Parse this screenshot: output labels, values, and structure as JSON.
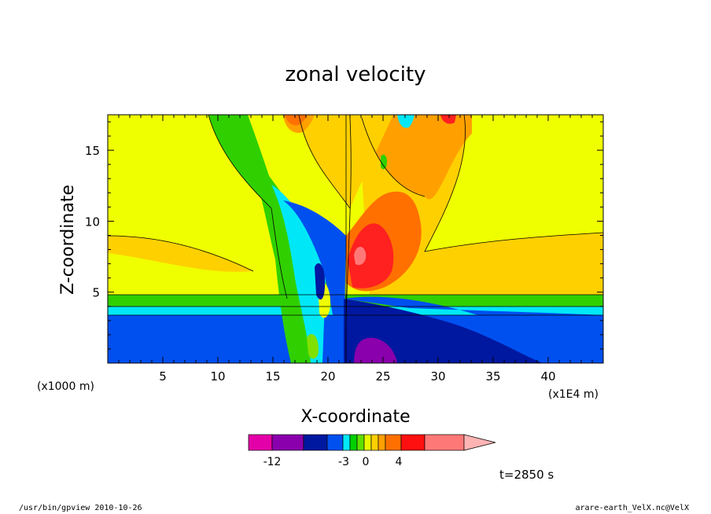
{
  "chart_data": {
    "type": "heatmap",
    "title": "zonal velocity",
    "xlabel": "X-coordinate",
    "ylabel": "Z-coordinate",
    "x_units": "(x1E4 m)",
    "z_units": "(x1000 m)",
    "xlim": [
      0,
      45
    ],
    "ylim": [
      0,
      17.5
    ],
    "x_ticks": [
      5,
      10,
      15,
      20,
      25,
      30,
      35,
      40
    ],
    "y_ticks": [
      5,
      10,
      15
    ],
    "time_label": "t=2850 s",
    "colorbar": {
      "tick_labels": [
        "-12",
        "-3",
        "0",
        "4"
      ],
      "colors": [
        "#e400a8",
        "#8a00ac",
        "#0018a0",
        "#0050f0",
        "#00e8f8",
        "#00d000",
        "#60e000",
        "#e8f800",
        "#ffd000",
        "#ffa000",
        "#ff7000",
        "#ff1010",
        "#ff7878",
        "#ffb4b4"
      ]
    },
    "field_colors": {
      "yellow": "#f0ff00",
      "gold": "#ffd000",
      "orange": "#ffa000",
      "redorange": "#ff7000",
      "red": "#ff2020",
      "pink": "#ff7878",
      "green": "#30d000",
      "lime": "#80e000",
      "cyan": "#00e8f8",
      "blue": "#0050f0",
      "navy": "#0018a0",
      "purple": "#8a00ac"
    }
  },
  "footer": {
    "left": "/usr/bin/gpview   2010-10-26",
    "right": "arare-earth_VelX.nc@VelX"
  }
}
